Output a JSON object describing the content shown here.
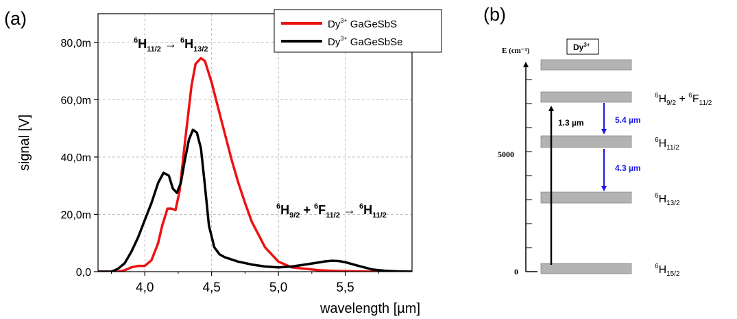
{
  "panel_a": {
    "panel_label": "(a)",
    "legend": [
      {
        "ion": "Dy",
        "charge": "3+",
        "host": "GaGeSbS",
        "color": "#ee1111"
      },
      {
        "ion": "Dy",
        "charge": "3+",
        "host": "GaGeSbSe",
        "color": "#000000"
      }
    ],
    "annotations": [
      {
        "from_sym": "H",
        "from_sup": "6",
        "from_sub": "11/2",
        "arrow": "→",
        "to_sym": "H",
        "to_sup": "6",
        "to_sub": "13/2"
      },
      {
        "a_sym": "H",
        "a_sup": "6",
        "a_sub": "9/2",
        "plus": "+",
        "b_sym": "F",
        "b_sup": "6",
        "b_sub": "11/2",
        "arrow": "→",
        "to_sym": "H",
        "to_sup": "6",
        "to_sub": "11/2"
      }
    ]
  },
  "chart_data": {
    "type": "line",
    "xlabel": "wavelength [µm]",
    "ylabel": "signal [V]",
    "xlim": [
      3.65,
      6.0
    ],
    "ylim": [
      0,
      0.09
    ],
    "xticks": [
      4.0,
      4.5,
      5.0,
      5.5
    ],
    "xtick_labels": [
      "4,0",
      "4,5",
      "5,0",
      "5,5"
    ],
    "yticks": [
      0,
      0.02,
      0.04,
      0.06,
      0.08
    ],
    "ytick_labels": [
      "0,0",
      "20,0m",
      "40,0m",
      "60,0m",
      "80,0m"
    ],
    "grid": "dashed",
    "legend_position": "top-right",
    "series": [
      {
        "name": "Dy3+ GaGeSbS",
        "color": "#ee1111",
        "x": [
          3.65,
          3.8,
          3.85,
          3.9,
          3.95,
          4.0,
          4.05,
          4.1,
          4.13,
          4.17,
          4.2,
          4.23,
          4.26,
          4.3,
          4.35,
          4.38,
          4.42,
          4.45,
          4.5,
          4.55,
          4.6,
          4.65,
          4.7,
          4.75,
          4.8,
          4.9,
          5.0,
          5.1,
          5.2,
          5.3,
          5.4,
          5.5,
          5.6,
          5.7,
          5.8,
          6.0
        ],
        "y": [
          0,
          0,
          0.0005,
          0.0015,
          0.002,
          0.002,
          0.004,
          0.01,
          0.016,
          0.022,
          0.022,
          0.0215,
          0.028,
          0.045,
          0.065,
          0.0725,
          0.0745,
          0.0735,
          0.066,
          0.057,
          0.048,
          0.039,
          0.031,
          0.024,
          0.0175,
          0.0085,
          0.0035,
          0.0015,
          0.001,
          0.0005,
          0.0003,
          0.0002,
          0.0001,
          0,
          0,
          0
        ]
      },
      {
        "name": "Dy3+ GaGeSbSe",
        "color": "#000000",
        "x": [
          3.65,
          3.75,
          3.8,
          3.85,
          3.9,
          3.95,
          4.0,
          4.05,
          4.1,
          4.14,
          4.18,
          4.21,
          4.24,
          4.27,
          4.3,
          4.33,
          4.36,
          4.39,
          4.42,
          4.45,
          4.48,
          4.52,
          4.56,
          4.6,
          4.7,
          4.8,
          4.9,
          5.0,
          5.1,
          5.2,
          5.3,
          5.35,
          5.4,
          5.45,
          5.5,
          5.6,
          5.7,
          5.8,
          5.9,
          6.0
        ],
        "y": [
          0,
          0,
          0.001,
          0.003,
          0.007,
          0.012,
          0.018,
          0.024,
          0.031,
          0.0345,
          0.0335,
          0.029,
          0.0275,
          0.031,
          0.039,
          0.046,
          0.0495,
          0.0485,
          0.043,
          0.03,
          0.016,
          0.0085,
          0.006,
          0.005,
          0.0035,
          0.0025,
          0.0018,
          0.0015,
          0.0018,
          0.0025,
          0.0032,
          0.0036,
          0.0038,
          0.0037,
          0.0033,
          0.002,
          0.0008,
          0.0003,
          0.0001,
          0
        ]
      }
    ]
  },
  "panel_b": {
    "panel_label": "(b)",
    "axis_label": "E (cm⁻¹)",
    "ion_box": {
      "ion": "Dy",
      "charge": "3+"
    },
    "y_value_labels": [
      "5000",
      "0"
    ],
    "levels": [
      {
        "sym": "H",
        "sup": "6",
        "sub": "15/2"
      },
      {
        "sym": "H",
        "sup": "6",
        "sub": "13/2"
      },
      {
        "sym": "H",
        "sup": "6",
        "sub": "11/2"
      },
      {
        "sym": "H",
        "sup": "6",
        "sub": "9/2",
        "plus": "+",
        "sym2": "F",
        "sup2": "6",
        "sub2": "11/2"
      }
    ],
    "transitions": [
      {
        "label": "1.3 µm",
        "color": "#000000"
      },
      {
        "label": "5.4 µm",
        "color": "#1a1aee"
      },
      {
        "label": "4.3 µm",
        "color": "#1a1aee"
      }
    ]
  }
}
